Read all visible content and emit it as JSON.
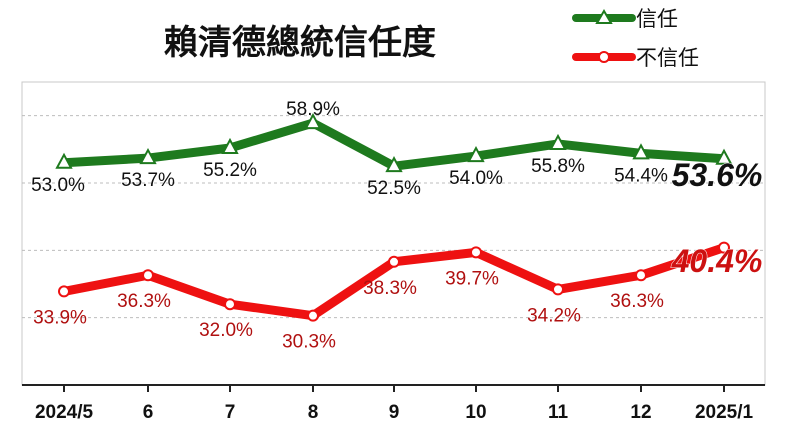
{
  "chart_data": {
    "type": "line",
    "title": "賴清德總統信任度",
    "categories": [
      "2024/5",
      "6",
      "7",
      "8",
      "9",
      "10",
      "11",
      "12",
      "2025/1"
    ],
    "series": [
      {
        "name": "信任",
        "color": "#1e7a1e",
        "marker": "triangle",
        "values": [
          53.0,
          53.7,
          55.2,
          58.9,
          52.5,
          54.0,
          55.8,
          54.4,
          53.6
        ],
        "labels": [
          "53.0%",
          "53.7%",
          "55.2%",
          "58.9%",
          "52.5%",
          "54.0%",
          "55.8%",
          "54.4%",
          "53.6%"
        ]
      },
      {
        "name": "不信任",
        "color": "#ee1111",
        "marker": "circle",
        "values": [
          33.9,
          36.3,
          32.0,
          30.3,
          38.3,
          39.7,
          34.2,
          36.3,
          40.4
        ],
        "labels": [
          "33.9%",
          "36.3%",
          "32.0%",
          "30.3%",
          "38.3%",
          "39.7%",
          "34.2%",
          "36.3%",
          "40.4%"
        ]
      }
    ],
    "ylim": [
      20,
      65
    ],
    "grid": true,
    "legend": "top-right"
  }
}
